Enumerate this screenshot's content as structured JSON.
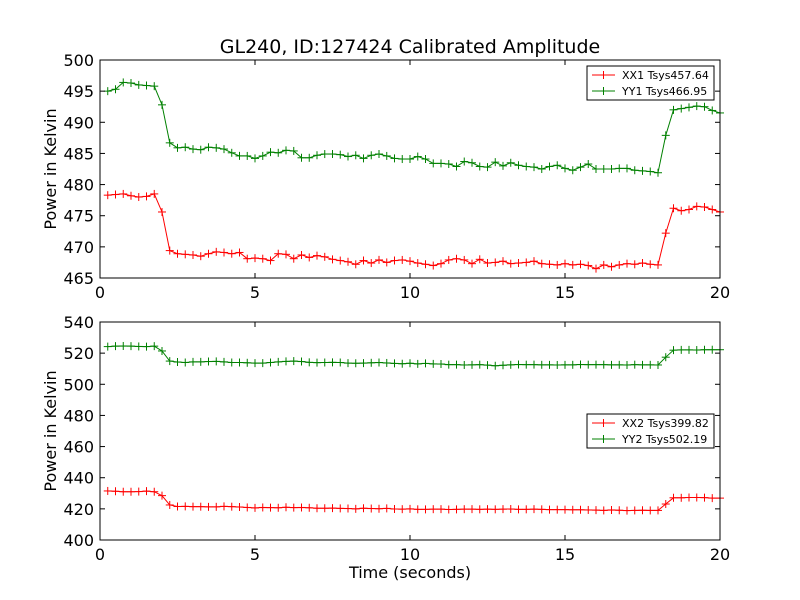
{
  "title": "GL240, ID:127424 Calibrated Amplitude",
  "colors": {
    "red": "#ff0000",
    "green": "#008000"
  },
  "chart_data": [
    {
      "type": "line",
      "xlabel": "",
      "ylabel": "Power in Kelvin",
      "xlim": [
        0,
        20
      ],
      "ylim": [
        465,
        500
      ],
      "xticks": [
        "0",
        "5",
        "10",
        "15",
        "20"
      ],
      "yticks": [
        "465",
        "470",
        "475",
        "480",
        "485",
        "490",
        "495",
        "500"
      ],
      "legend_position": "top-right",
      "x": [
        0.25,
        0.5,
        0.75,
        1.0,
        1.25,
        1.5,
        1.75,
        2.0,
        2.25,
        2.5,
        2.75,
        3.0,
        3.25,
        3.5,
        3.75,
        4.0,
        4.25,
        4.5,
        4.75,
        5.0,
        5.25,
        5.5,
        5.75,
        6.0,
        6.25,
        6.5,
        6.75,
        7.0,
        7.25,
        7.5,
        7.75,
        8.0,
        8.25,
        8.5,
        8.75,
        9.0,
        9.25,
        9.5,
        9.75,
        10.0,
        10.25,
        10.5,
        10.75,
        11.0,
        11.25,
        11.5,
        11.75,
        12.0,
        12.25,
        12.5,
        12.75,
        13.0,
        13.25,
        13.5,
        13.75,
        14.0,
        14.25,
        14.5,
        14.75,
        15.0,
        15.25,
        15.5,
        15.75,
        16.0,
        16.25,
        16.5,
        16.75,
        17.0,
        17.25,
        17.5,
        17.75,
        18.0,
        18.25,
        18.5,
        18.75,
        19.0,
        19.25,
        19.5,
        19.75,
        20.0
      ],
      "series": [
        {
          "name": "XX1 Tsys457.64",
          "color": "#ff0000",
          "values": [
            478.3,
            478.4,
            478.5,
            478.2,
            478.0,
            478.1,
            478.5,
            475.6,
            469.4,
            468.9,
            468.8,
            468.7,
            468.5,
            468.9,
            469.2,
            469.1,
            468.9,
            469.1,
            468.1,
            468.2,
            468.1,
            467.8,
            468.9,
            468.8,
            468.1,
            468.7,
            468.3,
            468.6,
            468.4,
            468.0,
            467.8,
            467.6,
            467.2,
            467.8,
            467.4,
            467.9,
            467.5,
            467.8,
            467.9,
            467.7,
            467.4,
            467.2,
            467.0,
            467.3,
            467.9,
            468.1,
            467.9,
            467.3,
            468.0,
            467.4,
            467.5,
            467.7,
            467.3,
            467.4,
            467.5,
            467.7,
            467.3,
            467.2,
            467.1,
            467.3,
            467.1,
            467.2,
            467.0,
            466.5,
            467.1,
            466.8,
            467.1,
            467.3,
            467.2,
            467.4,
            467.2,
            467.1,
            472.2,
            476.2,
            475.8,
            476.0,
            476.5,
            476.4,
            476.0,
            475.6
          ]
        },
        {
          "name": "YY1 Tsys466.95",
          "color": "#008000",
          "values": [
            495.0,
            495.3,
            496.4,
            496.3,
            496.0,
            495.9,
            495.8,
            492.8,
            486.7,
            485.9,
            486.0,
            485.7,
            485.6,
            486.0,
            485.9,
            485.7,
            485.1,
            484.6,
            484.6,
            484.2,
            484.6,
            485.2,
            485.1,
            485.5,
            485.4,
            484.3,
            484.3,
            484.7,
            484.9,
            484.9,
            484.8,
            484.5,
            484.7,
            484.2,
            484.7,
            484.9,
            484.6,
            484.2,
            484.1,
            484.1,
            484.5,
            484.1,
            483.4,
            483.4,
            483.3,
            482.9,
            483.7,
            483.5,
            482.9,
            482.8,
            483.6,
            483.0,
            483.5,
            483.1,
            482.9,
            482.8,
            482.5,
            482.9,
            483.1,
            482.6,
            482.3,
            482.8,
            483.3,
            482.5,
            482.5,
            482.5,
            482.6,
            482.6,
            482.3,
            482.2,
            482.1,
            481.9,
            487.9,
            492.0,
            492.2,
            492.4,
            492.6,
            492.5,
            491.9,
            491.5
          ]
        }
      ]
    },
    {
      "type": "line",
      "xlabel": "Time (seconds)",
      "ylabel": "Power in Kelvin",
      "xlim": [
        0,
        20
      ],
      "ylim": [
        400,
        540
      ],
      "xticks": [
        "0",
        "5",
        "10",
        "15",
        "20"
      ],
      "yticks": [
        "400",
        "420",
        "440",
        "460",
        "480",
        "500",
        "520",
        "540"
      ],
      "legend_position": "center-right",
      "x": [
        0.25,
        0.5,
        0.75,
        1.0,
        1.25,
        1.5,
        1.75,
        2.0,
        2.25,
        2.5,
        2.75,
        3.0,
        3.25,
        3.5,
        3.75,
        4.0,
        4.25,
        4.5,
        4.75,
        5.0,
        5.25,
        5.5,
        5.75,
        6.0,
        6.25,
        6.5,
        6.75,
        7.0,
        7.25,
        7.5,
        7.75,
        8.0,
        8.25,
        8.5,
        8.75,
        9.0,
        9.25,
        9.5,
        9.75,
        10.0,
        10.25,
        10.5,
        10.75,
        11.0,
        11.25,
        11.5,
        11.75,
        12.0,
        12.25,
        12.5,
        12.75,
        13.0,
        13.25,
        13.5,
        13.75,
        14.0,
        14.25,
        14.5,
        14.75,
        15.0,
        15.25,
        15.5,
        15.75,
        16.0,
        16.25,
        16.5,
        16.75,
        17.0,
        17.25,
        17.5,
        17.75,
        18.0,
        18.25,
        18.5,
        18.75,
        19.0,
        19.25,
        19.5,
        19.75,
        20.0
      ],
      "series": [
        {
          "name": "XX2 Tsys399.82",
          "color": "#ff0000",
          "values": [
            431.5,
            431.3,
            431.0,
            431.0,
            431.1,
            431.4,
            431.0,
            428.5,
            422.5,
            421.5,
            421.6,
            421.4,
            421.4,
            421.3,
            421.3,
            421.6,
            421.4,
            421.2,
            420.9,
            420.6,
            420.9,
            420.8,
            420.7,
            421.0,
            420.8,
            420.9,
            420.7,
            420.4,
            420.4,
            420.5,
            420.3,
            420.2,
            420.0,
            420.4,
            420.2,
            420.1,
            420.3,
            419.9,
            419.8,
            420.0,
            419.7,
            419.7,
            419.8,
            419.8,
            419.6,
            419.7,
            419.8,
            419.8,
            419.7,
            419.8,
            419.7,
            419.8,
            419.9,
            419.7,
            419.7,
            419.8,
            419.7,
            419.5,
            419.5,
            419.5,
            419.4,
            419.4,
            419.3,
            419.2,
            419.0,
            419.3,
            419.1,
            418.9,
            419.0,
            419.1,
            419.0,
            419.0,
            423.1,
            427.1,
            427.1,
            427.3,
            427.3,
            427.2,
            426.9,
            426.9
          ]
        },
        {
          "name": "YY2 Tsys502.19",
          "color": "#008000",
          "values": [
            524.2,
            524.5,
            524.6,
            524.5,
            524.3,
            524.2,
            524.5,
            521.4,
            514.9,
            514.3,
            514.0,
            514.4,
            514.4,
            514.6,
            514.7,
            514.4,
            514.0,
            514.0,
            513.8,
            513.6,
            513.6,
            514.0,
            514.4,
            514.7,
            514.9,
            514.6,
            514.1,
            513.9,
            514.0,
            514.1,
            514.0,
            513.6,
            513.5,
            513.6,
            513.8,
            514.0,
            513.7,
            513.4,
            513.2,
            513.5,
            513.1,
            513.4,
            513.1,
            513.0,
            512.6,
            512.6,
            512.4,
            512.5,
            512.6,
            512.3,
            511.9,
            512.2,
            512.5,
            512.7,
            512.6,
            512.6,
            512.5,
            512.5,
            512.4,
            512.5,
            512.5,
            512.7,
            512.6,
            512.6,
            512.6,
            512.5,
            512.5,
            512.4,
            512.6,
            512.5,
            512.5,
            512.4,
            517.4,
            521.9,
            522.1,
            522.1,
            522.0,
            522.2,
            522.2,
            522.2
          ]
        }
      ]
    }
  ]
}
